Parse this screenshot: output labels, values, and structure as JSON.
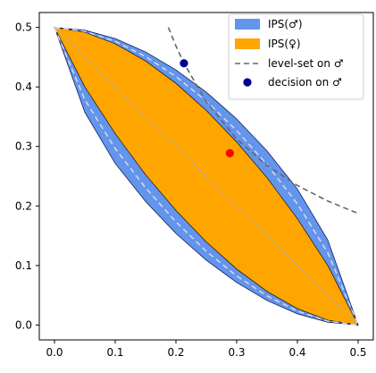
{
  "chart_data": {
    "type": "area",
    "xlim": [
      -0.025,
      0.525
    ],
    "ylim": [
      -0.025,
      0.525
    ],
    "x_ticks": [
      0.0,
      0.1,
      0.2,
      0.3,
      0.4,
      0.5
    ],
    "y_ticks": [
      0.0,
      0.1,
      0.2,
      0.3,
      0.4,
      0.5
    ],
    "x_tick_labels": [
      "0.0",
      "0.1",
      "0.2",
      "0.3",
      "0.4",
      "0.5"
    ],
    "y_tick_labels": [
      "0.0",
      "0.1",
      "0.2",
      "0.3",
      "0.4",
      "0.5"
    ],
    "grid": false,
    "legend_position": "upper-right",
    "regions": [
      {
        "name": "IPS(♂)",
        "color": "#6495ED",
        "upper_curve": [
          [
            0.0,
            0.5
          ],
          [
            0.05,
            0.4952
          ],
          [
            0.1,
            0.4812
          ],
          [
            0.15,
            0.4588
          ],
          [
            0.2,
            0.4286
          ],
          [
            0.25,
            0.3911
          ],
          [
            0.3,
            0.3462
          ],
          [
            0.35,
            0.2925
          ],
          [
            0.4,
            0.2285
          ],
          [
            0.45,
            0.1427
          ],
          [
            0.5,
            0.0
          ]
        ],
        "lower_curve": [
          [
            0.0,
            0.5
          ],
          [
            0.05,
            0.3573
          ],
          [
            0.1,
            0.2715
          ],
          [
            0.15,
            0.2075
          ],
          [
            0.2,
            0.1538
          ],
          [
            0.25,
            0.1089
          ],
          [
            0.3,
            0.0714
          ],
          [
            0.35,
            0.0412
          ],
          [
            0.4,
            0.0188
          ],
          [
            0.45,
            0.0048
          ],
          [
            0.5,
            0.0
          ]
        ]
      },
      {
        "name": "IPS(♀)",
        "color": "#FFA500",
        "upper_curve": [
          [
            0.0,
            0.5
          ],
          [
            0.05,
            0.4918
          ],
          [
            0.1,
            0.4725
          ],
          [
            0.15,
            0.4435
          ],
          [
            0.2,
            0.406
          ],
          [
            0.25,
            0.3605
          ],
          [
            0.3,
            0.3075
          ],
          [
            0.35,
            0.2475
          ],
          [
            0.4,
            0.1785
          ],
          [
            0.45,
            0.1
          ],
          [
            0.5,
            0.0
          ]
        ],
        "lower_curve": [
          [
            0.0,
            0.5
          ],
          [
            0.05,
            0.4
          ],
          [
            0.1,
            0.3215
          ],
          [
            0.15,
            0.2525
          ],
          [
            0.2,
            0.1925
          ],
          [
            0.25,
            0.1395
          ],
          [
            0.3,
            0.094
          ],
          [
            0.35,
            0.0565
          ],
          [
            0.4,
            0.0275
          ],
          [
            0.45,
            0.0082
          ],
          [
            0.5,
            0.0
          ]
        ]
      }
    ],
    "dashed_center_curves": [
      [
        [
          0.0,
          0.5
        ],
        [
          0.05,
          0.4935
        ],
        [
          0.1,
          0.4765
        ],
        [
          0.15,
          0.451
        ],
        [
          0.2,
          0.4175
        ],
        [
          0.25,
          0.3762
        ],
        [
          0.3,
          0.3267
        ],
        [
          0.35,
          0.2695
        ],
        [
          0.4,
          0.2035
        ],
        [
          0.45,
          0.1215
        ],
        [
          0.5,
          0.0
        ]
      ],
      [
        [
          0.0,
          0.5
        ],
        [
          0.05,
          0.3785
        ],
        [
          0.1,
          0.2965
        ],
        [
          0.15,
          0.2305
        ],
        [
          0.2,
          0.1733
        ],
        [
          0.25,
          0.1238
        ],
        [
          0.3,
          0.0825
        ],
        [
          0.35,
          0.049
        ],
        [
          0.4,
          0.0235
        ],
        [
          0.45,
          0.0065
        ],
        [
          0.5,
          0.0
        ]
      ]
    ],
    "series": [
      {
        "name": "level-set on ♂",
        "type": "line",
        "color": "#666666",
        "x": [
          0.1875,
          0.2,
          0.2132,
          0.25,
          0.3,
          0.35,
          0.4,
          0.45,
          0.5
        ],
        "y": [
          0.5,
          0.4688,
          0.4398,
          0.375,
          0.3125,
          0.2679,
          0.2344,
          0.2083,
          0.1875
        ]
      },
      {
        "name": "decision on ♂",
        "type": "scatter",
        "color": "#00008B",
        "x": [
          0.2132
        ],
        "y": [
          0.4398
        ]
      },
      {
        "type": "scatter",
        "color": "#FF0000",
        "x": [
          0.2887
        ],
        "y": [
          0.2887
        ]
      }
    ]
  }
}
